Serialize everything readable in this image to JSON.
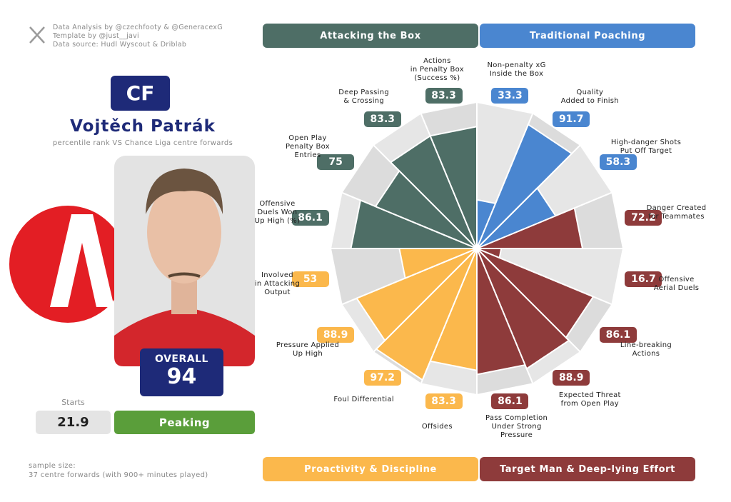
{
  "header": {
    "credits": [
      "Data Analysis by @czechfooty & @GeneracexG",
      "Template by @just__javi",
      "Data source: Hudl Wyscout & Driblab"
    ]
  },
  "player": {
    "position": "CF",
    "name": "Vojtěch Patrák",
    "subtitle": "percentile rank VS Chance Liga centre forwards"
  },
  "overall": {
    "label": "OVERALL",
    "value": 94
  },
  "starts": {
    "label": "Starts",
    "value": 21.9
  },
  "status": "Peaking",
  "footer": {
    "sample_size": [
      "sample size:",
      "37 centre forwards (with 900+ minutes played)"
    ]
  },
  "chart_data": {
    "type": "pizza",
    "ylim": [
      0,
      100
    ],
    "series": [
      {
        "name": "Traditional Poaching",
        "color": "#4a86d0",
        "categories": [
          "Non-penalty xG\nInside the Box",
          "Quality\nAdded to Finish",
          "High-danger Shots\nPut Off Target"
        ],
        "values": [
          33.3,
          91.7,
          58.3
        ]
      },
      {
        "name": "Target Man & Deep-lying Effort",
        "color": "#8e3b3b",
        "categories": [
          "Danger Created\nfor Teammates",
          "Offensive\nAerial Duels",
          "Line-breaking\nActions",
          "Expected Threat\nfrom Open Play",
          "Pass Completion\nUnder Strong\nPressure"
        ],
        "values": [
          72.2,
          16.7,
          86.1,
          88.9,
          86.1
        ]
      },
      {
        "name": "Proactivity & Discipline",
        "color": "#fbb84c",
        "categories": [
          "Offsides",
          "Foul Differential",
          "Pressure Applied\nUp High",
          "Involved\nin Attacking\nOutput"
        ],
        "values": [
          83.3,
          97.2,
          88.9,
          53
        ]
      },
      {
        "name": "Attacking the Box",
        "color": "#4e6e66",
        "categories": [
          "Offensive\nDuels Won\nUp High (%)",
          "Open Play\nPenalty Box\nEntries",
          "Deep Passing\n& Crossing",
          "Actions\nin Penalty Box\n(Success %)"
        ],
        "values": [
          86.1,
          75,
          83.3,
          83.3
        ]
      }
    ]
  }
}
